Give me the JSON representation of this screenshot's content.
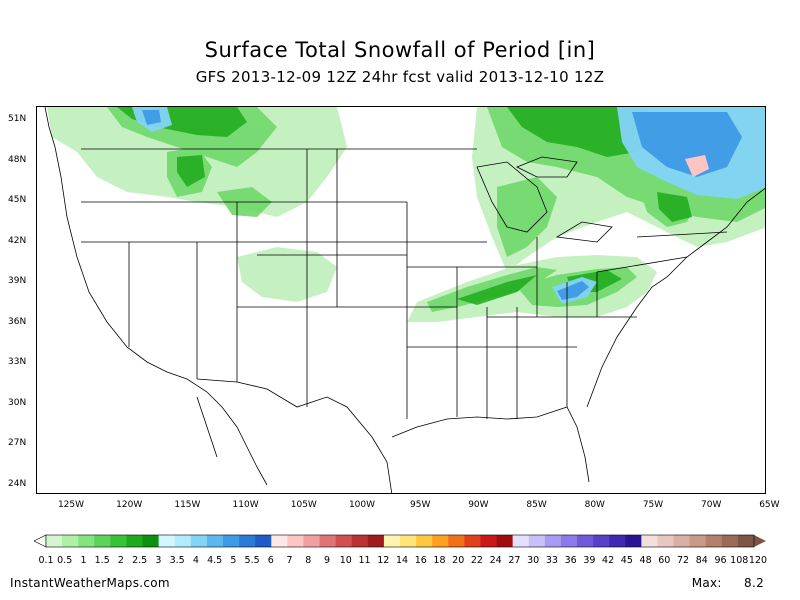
{
  "title": "Surface Total Snowfall of Period [in]",
  "subtitle": "GFS 2013-12-09 12Z 24hr fcst valid 2013-12-10 12Z",
  "latitude_labels": [
    "51N",
    "48N",
    "45N",
    "42N",
    "39N",
    "36N",
    "33N",
    "30N",
    "27N",
    "24N"
  ],
  "longitude_labels": [
    "125W",
    "120W",
    "115W",
    "110W",
    "105W",
    "100W",
    "95W",
    "90W",
    "85W",
    "80W",
    "75W",
    "70W",
    "65W"
  ],
  "colorbar": {
    "labels": [
      "0.1",
      "0.5",
      "1",
      "1.5",
      "2",
      "2.5",
      "3",
      "3.5",
      "4",
      "4.5",
      "5",
      "5.5",
      "6",
      "7",
      "8",
      "9",
      "10",
      "11",
      "12",
      "14",
      "16",
      "18",
      "20",
      "22",
      "24",
      "27",
      "30",
      "33",
      "36",
      "39",
      "42",
      "45",
      "48",
      "60",
      "72",
      "84",
      "96",
      "108",
      "120"
    ],
    "colors": [
      "#d4f5d0",
      "#aef0a8",
      "#86e480",
      "#5cd45a",
      "#38c236",
      "#1eaa1c",
      "#0f8f10",
      "#d6f6ff",
      "#b0ecfb",
      "#84d4f7",
      "#5ab8ef",
      "#3e9ae6",
      "#2a7ad8",
      "#1f5cc8",
      "#ffe6e8",
      "#ffc4c4",
      "#f0a0a0",
      "#e07474",
      "#d05050",
      "#bb3232",
      "#a01c1c",
      "#fff4b0",
      "#ffe47a",
      "#ffc840",
      "#ffa020",
      "#f07018",
      "#e0401c",
      "#c81818",
      "#a00c0c",
      "#e6e0ff",
      "#c8c0fa",
      "#a89cf2",
      "#8c7ae8",
      "#705ada",
      "#5840c8",
      "#4028b0",
      "#2a1494",
      "#f2e0dc",
      "#e6c8c0",
      "#d8b0a4",
      "#c89888",
      "#b4806e",
      "#9c6a58",
      "#7e5446"
    ],
    "left_arrow_color": "#ffffff",
    "right_arrow_color": "#7e5446"
  },
  "footer": {
    "site": "InstantWeatherMaps.com",
    "max_label": "Max:",
    "max_value": "8.2"
  }
}
